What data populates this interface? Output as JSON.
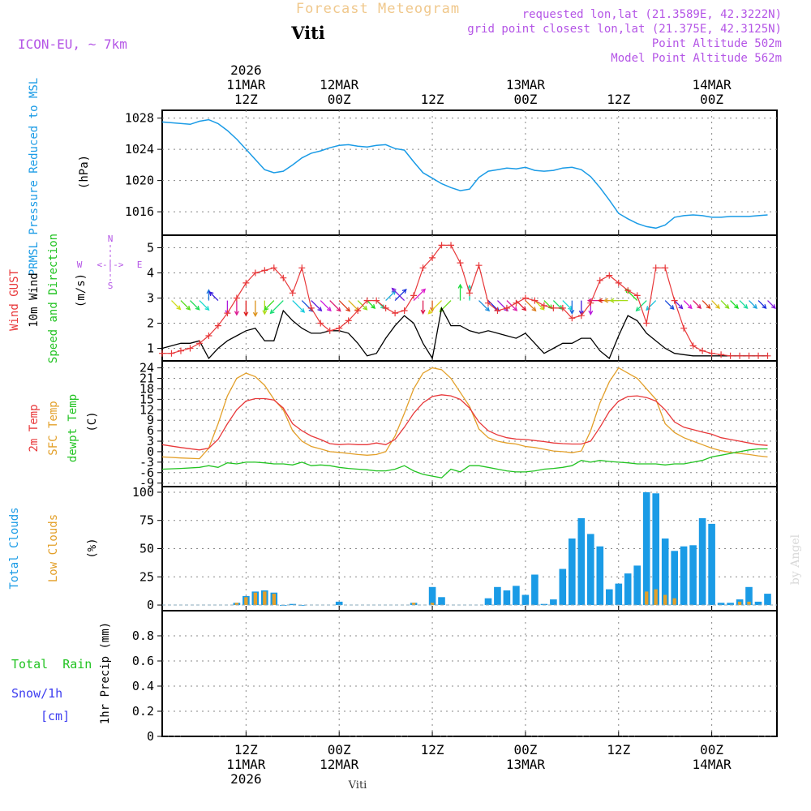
{
  "header": {
    "title": "Forecast Meteogram",
    "location": "Viti",
    "model": "ICON-EU, ~ 7km",
    "requested": "requested lon,lat (21.3589E, 42.3222N)",
    "grid_point": "grid point closest lon,lat (21.375E, 42.3125N)",
    "point_altitude": "Point Altitude 502m",
    "model_altitude": "Model Point Altitude 562m",
    "watermark": "by Angel",
    "footer_location": "Viti"
  },
  "colors": {
    "pressure": "#1a9be6",
    "gust": "#e8383a",
    "wind": "#000000",
    "temp2m": "#e8383a",
    "sfc": "#e3a02a",
    "dewpt": "#22c322",
    "total_clouds": "#1a9be6",
    "low_clouds": "#e3a02a",
    "rain": "#22c322",
    "snow": "#3c3cf0",
    "title": "#f0c88c",
    "meta": "#b455e6"
  },
  "chart_data": {
    "time_axis": {
      "range_hours": [
        -9,
        57
      ],
      "top_year": "2026",
      "ticks": [
        {
          "h": 0,
          "top1": "11MAR",
          "top2": "12Z",
          "bot1": "12Z",
          "bot2": "11MAR",
          "bot3": "2026"
        },
        {
          "h": 10,
          "top1": "12MAR",
          "top2": "00Z",
          "bot1": "00Z",
          "bot2": "12MAR",
          "bot3": ""
        },
        {
          "h": 20,
          "top1": "",
          "top2": "12Z",
          "bot1": "12Z",
          "bot2": "",
          "bot3": ""
        },
        {
          "h": 30,
          "top1": "13MAR",
          "top2": "00Z",
          "bot1": "00Z",
          "bot2": "13MAR",
          "bot3": ""
        },
        {
          "h": 40,
          "top1": "",
          "top2": "12Z",
          "bot1": "12Z",
          "bot2": "",
          "bot3": ""
        },
        {
          "h": 50,
          "top1": "14MAR",
          "top2": "00Z",
          "bot1": "00Z",
          "bot2": "14MAR",
          "bot3": ""
        }
      ]
    },
    "pressure": {
      "type": "line",
      "ylabel": "PRMSL Pressure Reduced to MSL",
      "unit": "(hPa)",
      "ylim": [
        1013,
        1029
      ],
      "yticks": [
        1016,
        1020,
        1024,
        1028
      ],
      "x": [
        -9,
        -6,
        -5,
        -4,
        -3,
        -2,
        -1,
        0,
        1,
        2,
        3,
        4,
        5,
        6,
        7,
        8,
        9,
        10,
        11,
        12,
        13,
        14,
        15,
        16,
        17,
        18,
        19,
        20,
        21,
        22,
        23,
        24,
        25,
        26,
        27,
        28,
        29,
        30,
        31,
        32,
        33,
        34,
        35,
        36,
        37,
        38,
        39,
        40,
        41,
        42,
        43,
        44,
        45,
        46,
        47,
        48,
        49,
        50,
        51,
        52,
        53,
        54,
        55,
        56
      ],
      "values": [
        1027.5,
        1027.2,
        1027.6,
        1027.8,
        1027.3,
        1026.4,
        1025.3,
        1024.0,
        1022.7,
        1021.4,
        1021.0,
        1021.2,
        1022.0,
        1022.9,
        1023.5,
        1023.8,
        1024.2,
        1024.5,
        1024.6,
        1024.4,
        1024.3,
        1024.5,
        1024.6,
        1024.1,
        1023.9,
        1022.4,
        1021.0,
        1020.3,
        1019.6,
        1019.1,
        1018.7,
        1018.9,
        1020.4,
        1021.2,
        1021.4,
        1021.6,
        1021.5,
        1021.7,
        1021.3,
        1021.2,
        1021.3,
        1021.6,
        1021.7,
        1021.4,
        1020.5,
        1019.1,
        1017.5,
        1015.8,
        1015.1,
        1014.5,
        1014.1,
        1013.9,
        1014.3,
        1015.3,
        1015.5,
        1015.6,
        1015.5,
        1015.3,
        1015.3,
        1015.4,
        1015.4,
        1015.4,
        1015.5,
        1015.6
      ]
    },
    "wind": {
      "type": "line",
      "ylabel_gust": "Wind GUST",
      "ylabel_wind": "10m Wind",
      "ylabel_dir": "Speed and Direction",
      "unit": "(m/s)",
      "compass": {
        "n": "N",
        "w": "W",
        "e": "E",
        "s": "S",
        "arrow": "<-|->"
      },
      "ylim": [
        0.5,
        5.5
      ],
      "yticks": [
        1,
        2,
        3,
        4,
        5
      ],
      "x": [
        -9,
        -8,
        -7,
        -6,
        -5,
        -4,
        -3,
        -2,
        -1,
        0,
        1,
        2,
        3,
        4,
        5,
        6,
        7,
        8,
        9,
        10,
        11,
        12,
        13,
        14,
        15,
        16,
        17,
        18,
        19,
        20,
        21,
        22,
        23,
        24,
        25,
        26,
        27,
        28,
        29,
        30,
        31,
        32,
        33,
        34,
        35,
        36,
        37,
        38,
        39,
        40,
        41,
        42,
        43,
        44,
        45,
        46,
        47,
        48,
        49,
        50,
        51,
        52,
        53,
        54,
        55,
        56
      ],
      "gust": [
        0.8,
        0.8,
        0.9,
        1.0,
        1.2,
        1.5,
        1.9,
        2.4,
        3.0,
        3.6,
        4.0,
        4.1,
        4.2,
        3.8,
        3.2,
        4.2,
        2.6,
        2.0,
        1.7,
        1.8,
        2.1,
        2.5,
        2.9,
        2.9,
        2.6,
        2.4,
        2.5,
        3.1,
        4.2,
        4.6,
        5.1,
        5.1,
        4.4,
        3.2,
        4.3,
        2.8,
        2.5,
        2.6,
        2.8,
        3.0,
        2.9,
        2.7,
        2.6,
        2.6,
        2.2,
        2.3,
        2.8,
        3.7,
        3.9,
        3.6,
        3.3,
        3.1,
        2.0,
        4.2,
        4.2,
        2.9,
        1.8,
        1.1,
        0.9,
        0.8,
        0.75,
        0.7,
        0.7,
        0.7,
        0.7,
        0.7
      ],
      "speed": [
        1.0,
        1.1,
        1.2,
        1.2,
        1.3,
        0.6,
        1.0,
        1.3,
        1.5,
        1.7,
        1.8,
        1.3,
        1.3,
        2.5,
        2.1,
        1.8,
        1.6,
        1.6,
        1.7,
        1.7,
        1.6,
        1.2,
        0.7,
        0.8,
        1.4,
        1.9,
        2.3,
        2.0,
        1.2,
        0.6,
        2.6,
        1.9,
        1.9,
        1.7,
        1.6,
        1.7,
        1.6,
        1.5,
        1.4,
        1.6,
        1.2,
        0.8,
        1.0,
        1.2,
        1.2,
        1.4,
        1.4,
        0.9,
        0.6,
        1.5,
        2.3,
        2.1,
        1.6,
        1.3,
        1.0,
        0.8,
        0.75,
        0.7,
        0.7,
        0.7,
        0.7,
        0.7,
        0.7,
        0.7,
        0.7,
        0.7
      ],
      "arrows": [
        {
          "h": -8,
          "dir": "SE"
        },
        {
          "h": -7,
          "dir": "SE"
        },
        {
          "h": -6,
          "dir": "SE"
        },
        {
          "h": -5,
          "dir": "SE"
        },
        {
          "h": -4,
          "dir": "N"
        },
        {
          "h": -3,
          "dir": "NW"
        },
        {
          "h": -2,
          "dir": "S"
        },
        {
          "h": -1,
          "dir": "S"
        },
        {
          "h": 0,
          "dir": "S"
        },
        {
          "h": 1,
          "dir": "S"
        },
        {
          "h": 2,
          "dir": "S"
        },
        {
          "h": 3,
          "dir": "SW"
        },
        {
          "h": 4,
          "dir": "SW"
        },
        {
          "h": 5,
          "dir": "SE"
        },
        {
          "h": 6,
          "dir": "SE"
        },
        {
          "h": 7,
          "dir": "SE"
        },
        {
          "h": 8,
          "dir": "SE"
        },
        {
          "h": 9,
          "dir": "SE"
        },
        {
          "h": 10,
          "dir": "SE"
        },
        {
          "h": 11,
          "dir": "SE"
        },
        {
          "h": 12,
          "dir": "SE"
        },
        {
          "h": 13,
          "dir": "SE"
        },
        {
          "h": 14,
          "dir": "SE"
        },
        {
          "h": 15,
          "dir": "NE"
        },
        {
          "h": 16,
          "dir": "NE"
        },
        {
          "h": 17,
          "dir": "NW"
        },
        {
          "h": 18,
          "dir": "NE"
        },
        {
          "h": 19,
          "dir": "S"
        },
        {
          "h": 20,
          "dir": "S"
        },
        {
          "h": 21,
          "dir": "SW"
        },
        {
          "h": 22,
          "dir": "SW"
        },
        {
          "h": 23,
          "dir": "N"
        },
        {
          "h": 24,
          "dir": "N"
        },
        {
          "h": 25,
          "dir": "SE"
        },
        {
          "h": 26,
          "dir": "SE"
        },
        {
          "h": 27,
          "dir": "SE"
        },
        {
          "h": 28,
          "dir": "SE"
        },
        {
          "h": 29,
          "dir": "SE"
        },
        {
          "h": 30,
          "dir": "SE"
        },
        {
          "h": 31,
          "dir": "SE"
        },
        {
          "h": 32,
          "dir": "SE"
        },
        {
          "h": 33,
          "dir": "SE"
        },
        {
          "h": 34,
          "dir": "SE"
        },
        {
          "h": 35,
          "dir": "S"
        },
        {
          "h": 36,
          "dir": "S"
        },
        {
          "h": 37,
          "dir": "S"
        },
        {
          "h": 38,
          "dir": "W"
        },
        {
          "h": 39,
          "dir": "W"
        },
        {
          "h": 40,
          "dir": "W"
        },
        {
          "h": 41,
          "dir": "W"
        },
        {
          "h": 42,
          "dir": "NW"
        },
        {
          "h": 43,
          "dir": "SW"
        },
        {
          "h": 44,
          "dir": "SW"
        },
        {
          "h": 45,
          "dir": "SE"
        },
        {
          "h": 46,
          "dir": "SE"
        },
        {
          "h": 47,
          "dir": "SE"
        },
        {
          "h": 48,
          "dir": "SE"
        },
        {
          "h": 49,
          "dir": "SE"
        },
        {
          "h": 50,
          "dir": "SE"
        },
        {
          "h": 51,
          "dir": "SE"
        },
        {
          "h": 52,
          "dir": "SE"
        },
        {
          "h": 53,
          "dir": "SE"
        },
        {
          "h": 54,
          "dir": "SE"
        },
        {
          "h": 55,
          "dir": "SE"
        },
        {
          "h": 56,
          "dir": "SE"
        }
      ]
    },
    "temperature": {
      "type": "line",
      "ylabel_2m": "2m Temp",
      "ylabel_sfc": "SFC Temp",
      "ylabel_dew": "dewpt Temp",
      "unit": "(C)",
      "ylim": [
        -10,
        26
      ],
      "yticks": [
        -9,
        -6,
        -3,
        0,
        3,
        6,
        9,
        12,
        15,
        18,
        21,
        24
      ],
      "x": [
        -9,
        -7,
        -5,
        -4,
        -3,
        -2,
        -1,
        0,
        1,
        2,
        3,
        4,
        5,
        6,
        7,
        8,
        9,
        10,
        11,
        12,
        13,
        14,
        15,
        16,
        17,
        18,
        19,
        20,
        21,
        22,
        23,
        24,
        25,
        26,
        27,
        28,
        29,
        30,
        31,
        32,
        33,
        34,
        35,
        36,
        37,
        38,
        39,
        40,
        41,
        42,
        43,
        44,
        45,
        46,
        47,
        48,
        49,
        50,
        51,
        52,
        53,
        54,
        55,
        56
      ],
      "t2m": [
        2.0,
        1.2,
        0.5,
        1.0,
        3.5,
        8.0,
        12.0,
        14.5,
        15.2,
        15.2,
        14.8,
        12.5,
        8.0,
        6.0,
        4.5,
        3.5,
        2.3,
        2.0,
        2.2,
        2.0,
        2.0,
        2.5,
        2.0,
        3.5,
        7.0,
        11.0,
        14.0,
        15.8,
        16.3,
        16.0,
        15.0,
        12.5,
        8.5,
        6.0,
        4.8,
        4.0,
        3.6,
        3.5,
        3.2,
        2.9,
        2.5,
        2.3,
        2.2,
        2.2,
        3.0,
        7.0,
        11.5,
        14.5,
        15.8,
        16.0,
        15.5,
        14.5,
        12.0,
        8.5,
        7.0,
        6.3,
        5.6,
        5.0,
        4.0,
        3.5,
        3.0,
        2.5,
        2.0,
        1.8
      ],
      "sfc": [
        -1.5,
        -1.8,
        -2.0,
        1.0,
        8.0,
        16.0,
        21.0,
        22.5,
        21.5,
        19.0,
        15.0,
        12.0,
        6.0,
        3.0,
        1.5,
        0.8,
        0.0,
        -0.2,
        -0.5,
        -0.8,
        -1.0,
        -0.8,
        0.0,
        4.5,
        11.0,
        18.0,
        22.5,
        24.0,
        23.5,
        21.0,
        17.0,
        13.0,
        6.5,
        4.0,
        3.0,
        2.5,
        2.2,
        1.5,
        1.2,
        0.7,
        0.2,
        0.0,
        -0.3,
        0.2,
        6.0,
        14.0,
        20.0,
        24.0,
        22.5,
        21.0,
        18.0,
        15.0,
        8.0,
        5.5,
        4.0,
        3.0,
        2.0,
        1.0,
        0.3,
        -0.2,
        -0.5,
        -0.8,
        -1.2,
        -1.5
      ],
      "dew": [
        -5.0,
        -4.8,
        -4.5,
        -4.0,
        -4.5,
        -3.2,
        -3.5,
        -3.0,
        -3.0,
        -3.2,
        -3.5,
        -3.5,
        -3.8,
        -3.0,
        -4.0,
        -3.8,
        -4.0,
        -4.5,
        -4.8,
        -5.0,
        -5.2,
        -5.5,
        -5.5,
        -5.0,
        -4.0,
        -5.5,
        -6.5,
        -7.0,
        -7.5,
        -5.0,
        -5.8,
        -4.0,
        -4.0,
        -4.5,
        -5.0,
        -5.5,
        -5.8,
        -5.8,
        -5.5,
        -5.0,
        -4.8,
        -4.5,
        -4.0,
        -2.5,
        -3.0,
        -2.5,
        -2.8,
        -3.0,
        -3.2,
        -3.5,
        -3.5,
        -3.5,
        -3.8,
        -3.5,
        -3.5,
        -3.0,
        -2.5,
        -1.5,
        -1.0,
        -0.5,
        0.0,
        0.5,
        0.8,
        0.8
      ]
    },
    "clouds": {
      "type": "bar",
      "ylabel_total": "Total Clouds",
      "ylabel_low": "Low Clouds",
      "unit": "(%)",
      "ylim": [
        -5,
        105
      ],
      "yticks": [
        0,
        25,
        50,
        75,
        100
      ],
      "x": [
        -1,
        0,
        1,
        2,
        3,
        4,
        5,
        6,
        10,
        18,
        20,
        21,
        26,
        27,
        28,
        29,
        30,
        31,
        32,
        33,
        34,
        35,
        36,
        37,
        38,
        39,
        40,
        41,
        42,
        43,
        44,
        45,
        46,
        47,
        48,
        49,
        50,
        51,
        52,
        53,
        54,
        55,
        56
      ],
      "total": [
        2,
        8,
        12,
        13,
        11,
        0,
        1,
        0,
        3,
        2,
        16,
        7,
        6,
        16,
        13,
        17,
        9,
        27,
        1,
        5,
        32,
        59,
        77,
        63,
        52,
        14,
        19,
        28,
        35,
        100,
        99,
        59,
        48,
        52,
        53,
        77,
        72,
        2,
        2,
        5,
        16,
        3,
        10
      ],
      "low": [
        2,
        7,
        11,
        12,
        10,
        0,
        0,
        0,
        0,
        2,
        2,
        0,
        0,
        0,
        0,
        0,
        0,
        0,
        0,
        0,
        0,
        0,
        0,
        0,
        0,
        0,
        0,
        0,
        0,
        12,
        14,
        9,
        6,
        0,
        0,
        0,
        0,
        0,
        0,
        3,
        3,
        0,
        0
      ]
    },
    "precip": {
      "type": "bar",
      "ylabel": "1hr Precip (mm)",
      "label_rain": "Total  Rain",
      "label_snow": "Snow/1h",
      "label_cm": "[cm]",
      "ylim": [
        0,
        1.0
      ],
      "yticks": [
        0,
        0.2,
        0.4,
        0.6,
        0.8
      ],
      "ytick_labels": [
        "0",
        "0.2",
        "0.4",
        "0.6",
        "0.8"
      ],
      "rain": [],
      "snow": []
    }
  }
}
